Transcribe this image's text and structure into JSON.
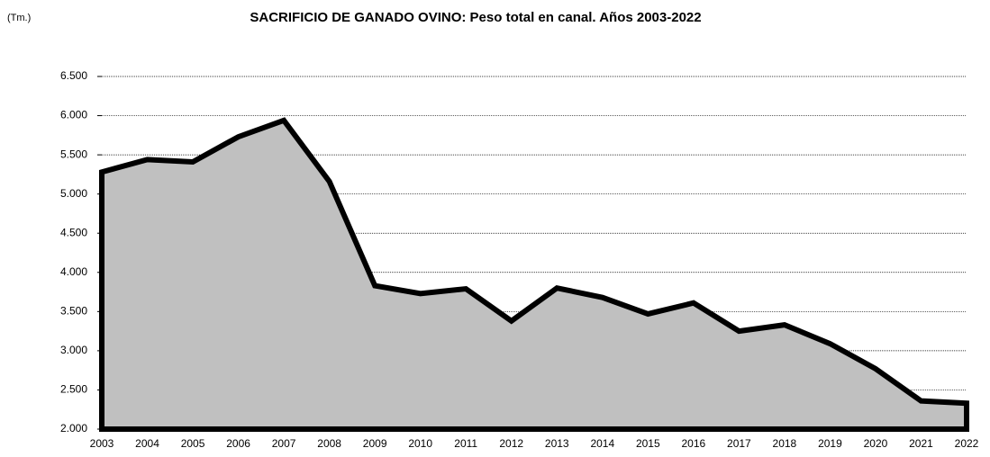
{
  "chart_data": {
    "type": "area",
    "title": "SACRIFICIO DE GANADO OVINO: Peso total en canal. Años 2003-2022",
    "ylabel": "(Tm.)",
    "categories": [
      "2003",
      "2004",
      "2005",
      "2006",
      "2007",
      "2008",
      "2009",
      "2010",
      "2011",
      "2012",
      "2013",
      "2014",
      "2015",
      "2016",
      "2017",
      "2018",
      "2019",
      "2020",
      "2021",
      "2022"
    ],
    "values": [
      5280,
      5440,
      5410,
      5730,
      5940,
      5160,
      3830,
      3730,
      3790,
      3380,
      3800,
      3680,
      3470,
      3610,
      3250,
      3330,
      3090,
      2770,
      2360,
      2330
    ],
    "color": "#c0c0c0",
    "line_color": "#000000",
    "ylim": [
      2000,
      6500
    ],
    "yticks": [
      {
        "value": 2000,
        "label": "2.000"
      },
      {
        "value": 2500,
        "label": "2.500"
      },
      {
        "value": 3000,
        "label": "3.000"
      },
      {
        "value": 3500,
        "label": "3.500"
      },
      {
        "value": 4000,
        "label": "4.000"
      },
      {
        "value": 4500,
        "label": "4.500"
      },
      {
        "value": 5000,
        "label": "5.000"
      },
      {
        "value": 5500,
        "label": "5.500"
      },
      {
        "value": 6000,
        "label": "6.000"
      },
      {
        "value": 6500,
        "label": "6.500"
      }
    ],
    "grid": true
  }
}
